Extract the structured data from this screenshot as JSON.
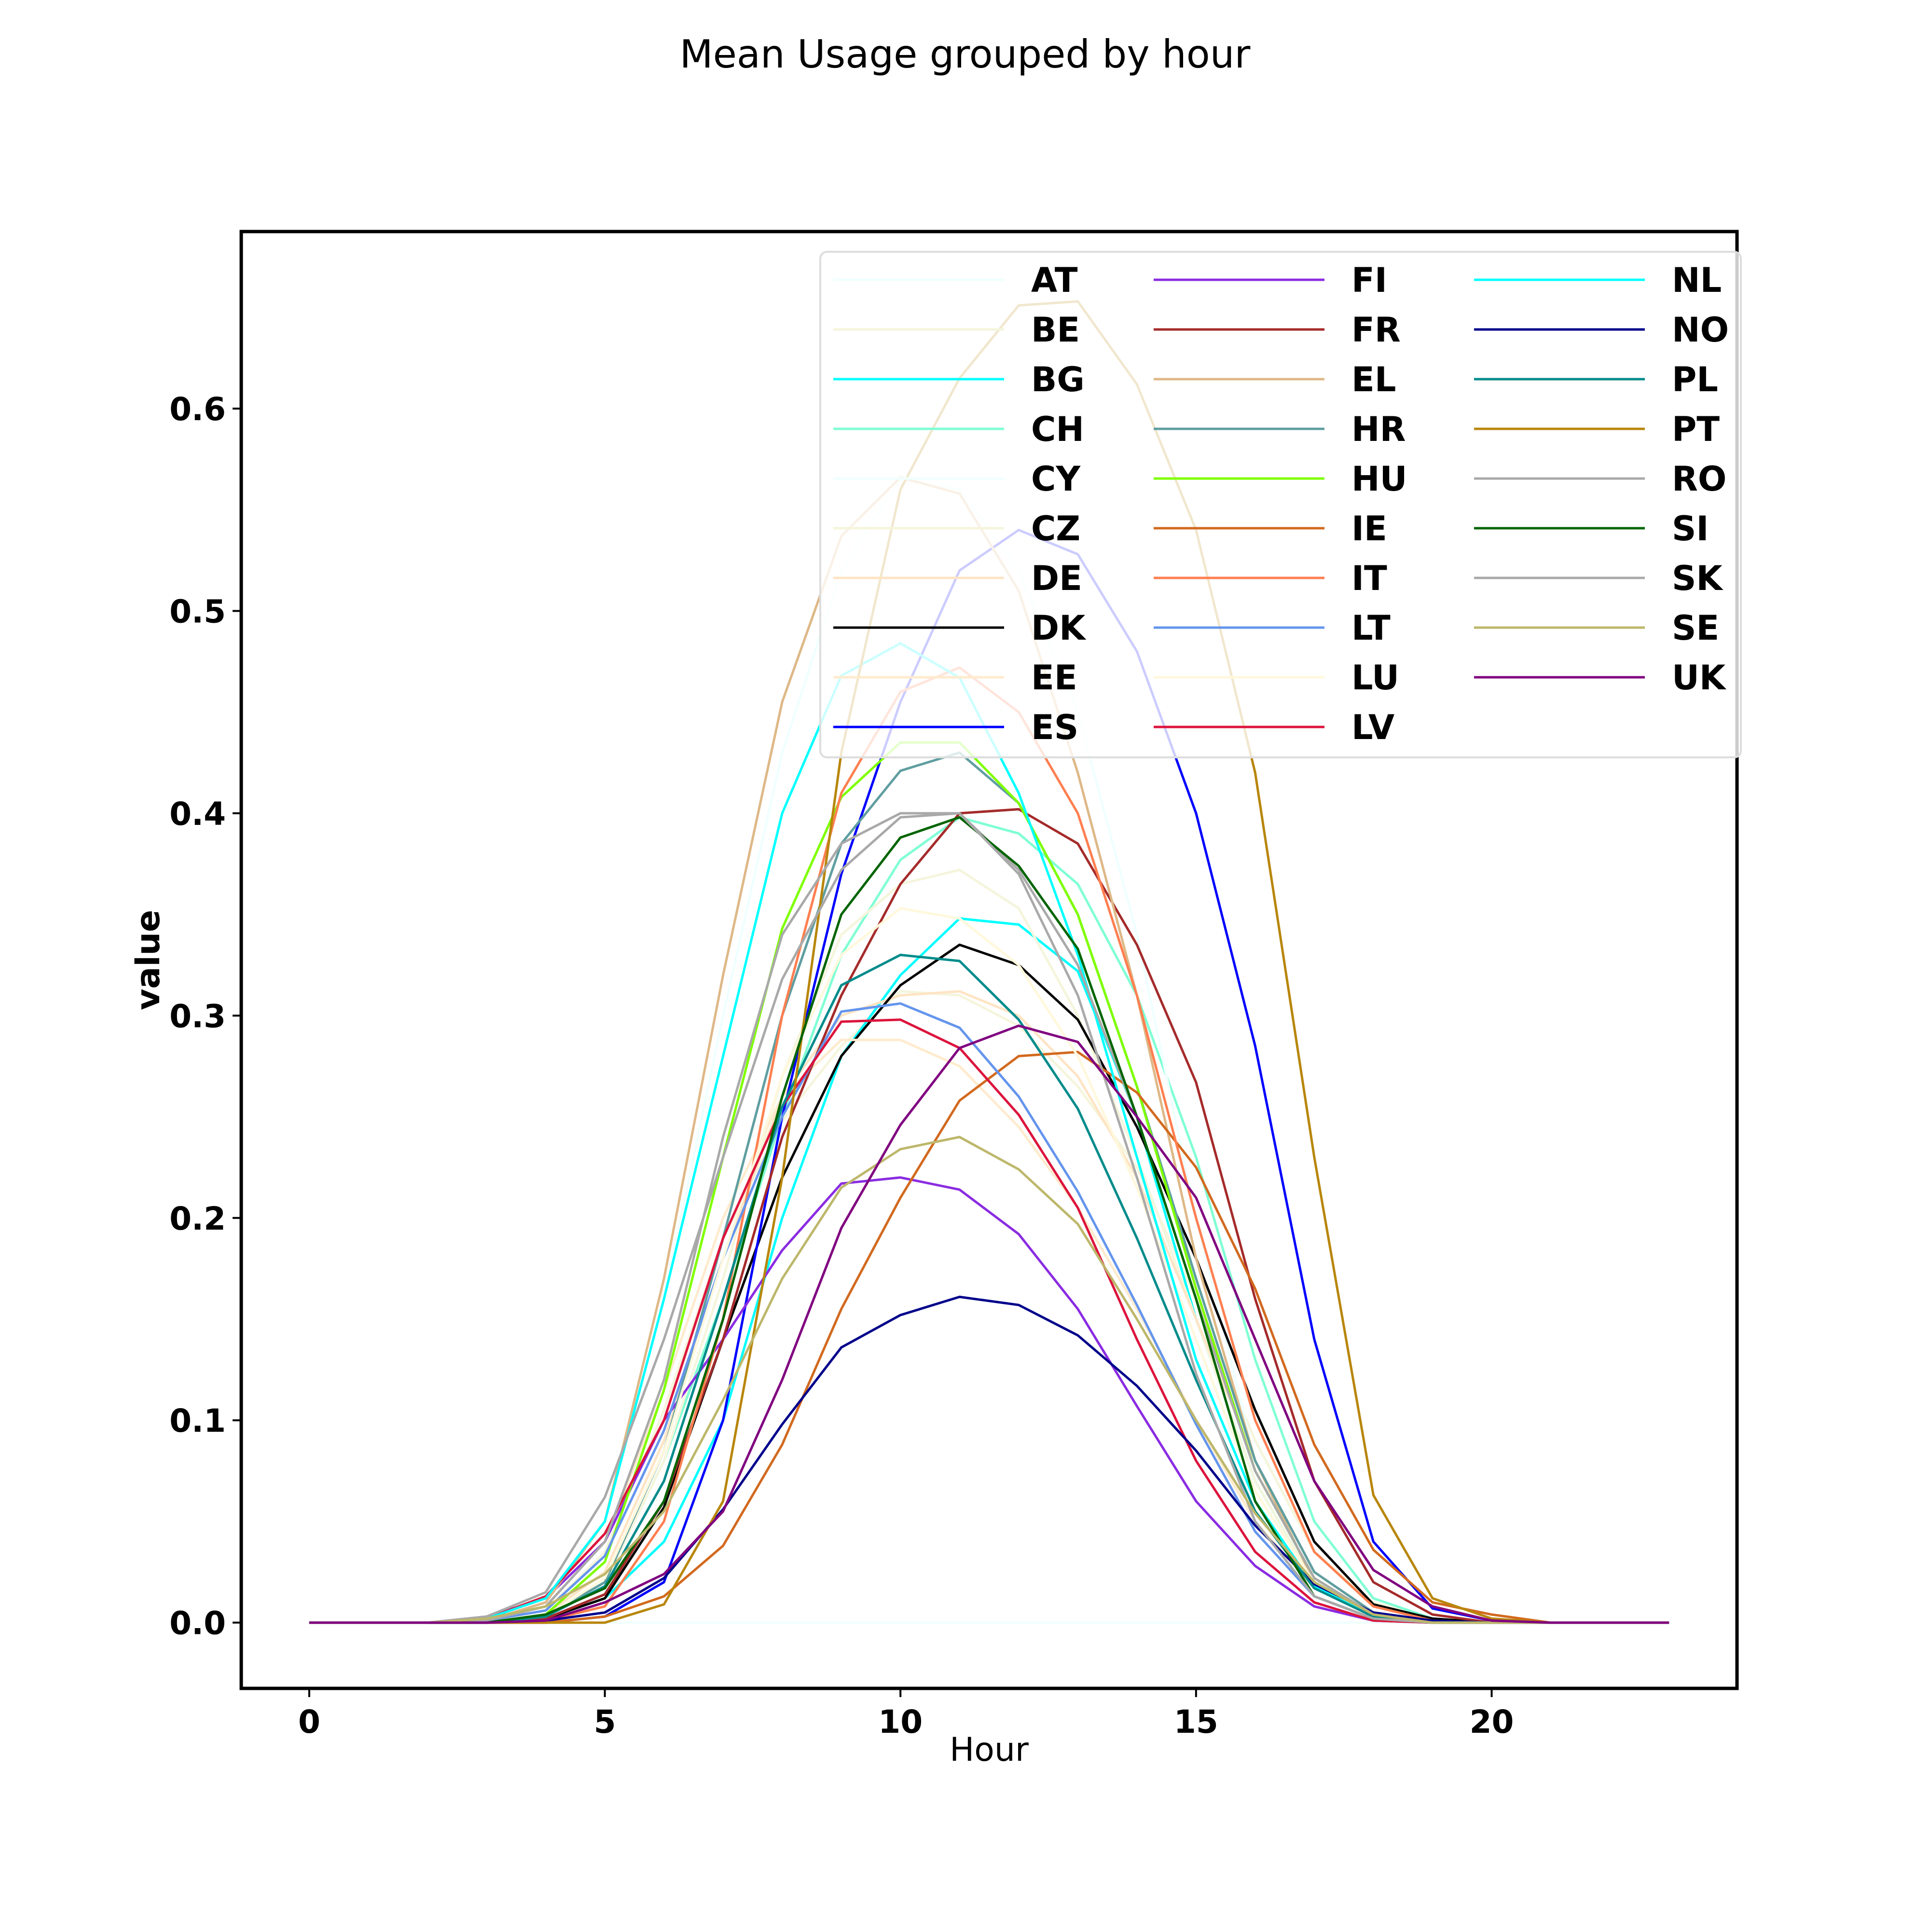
{
  "chart_data": {
    "type": "line",
    "title": "Mean Usage grouped by hour",
    "xlabel": "Hour",
    "ylabel": "value",
    "xlim": [
      -1.15,
      24.15
    ],
    "ylim": [
      -0.0325,
      0.6875
    ],
    "xticks": [
      0,
      5,
      10,
      15,
      20
    ],
    "yticks": [
      0.0,
      0.1,
      0.2,
      0.3,
      0.4,
      0.5,
      0.6
    ],
    "ytick_labels": [
      "0.0",
      "0.1",
      "0.2",
      "0.3",
      "0.4",
      "0.5",
      "0.6"
    ],
    "grid": false,
    "legend": {
      "position": "top-right",
      "columns": 3
    },
    "x": [
      0,
      1,
      2,
      3,
      4,
      5,
      6,
      7,
      8,
      9,
      10,
      11,
      12,
      13,
      14,
      15,
      16,
      17,
      18,
      19,
      20,
      21,
      22,
      23
    ],
    "series": [
      {
        "name": "AT",
        "color": "#F0FFFF",
        "values": [
          0,
          0,
          0,
          0,
          0,
          0,
          0,
          0,
          0,
          0,
          0,
          0,
          0,
          0,
          0,
          0,
          0,
          0,
          0,
          0,
          0,
          0,
          0,
          0
        ]
      },
      {
        "name": "BE",
        "color": "#F5F5DC",
        "values": [
          0,
          0,
          0,
          0.001,
          0.006,
          0.035,
          0.105,
          0.19,
          0.248,
          0.285,
          0.312,
          0.31,
          0.295,
          0.265,
          0.225,
          0.16,
          0.09,
          0.035,
          0.01,
          0.002,
          0,
          0,
          0,
          0
        ]
      },
      {
        "name": "BG",
        "color": "#00FFFF",
        "values": [
          0,
          0,
          0,
          0,
          0.002,
          0.012,
          0.04,
          0.1,
          0.2,
          0.28,
          0.32,
          0.348,
          0.345,
          0.322,
          0.25,
          0.15,
          0.07,
          0.02,
          0.004,
          0,
          0,
          0,
          0,
          0
        ]
      },
      {
        "name": "CH",
        "color": "#7FFFD4",
        "values": [
          0,
          0,
          0,
          0,
          0.003,
          0.02,
          0.08,
          0.16,
          0.25,
          0.33,
          0.377,
          0.398,
          0.39,
          0.365,
          0.31,
          0.23,
          0.13,
          0.05,
          0.012,
          0.002,
          0,
          0,
          0,
          0
        ]
      },
      {
        "name": "CY",
        "color": "#F0FFFF",
        "values": [
          0,
          0,
          0,
          0.001,
          0.01,
          0.05,
          0.16,
          0.3,
          0.43,
          0.52,
          0.565,
          0.56,
          0.52,
          0.45,
          0.34,
          0.2,
          0.08,
          0.02,
          0.003,
          0,
          0,
          0,
          0,
          0
        ]
      },
      {
        "name": "CZ",
        "color": "#F5F5DC",
        "values": [
          0,
          0,
          0,
          0,
          0.003,
          0.02,
          0.08,
          0.17,
          0.27,
          0.34,
          0.365,
          0.372,
          0.353,
          0.3,
          0.23,
          0.15,
          0.07,
          0.02,
          0.004,
          0.001,
          0,
          0,
          0,
          0
        ]
      },
      {
        "name": "DE",
        "color": "#FFE4C4",
        "values": [
          0,
          0,
          0,
          0,
          0.004,
          0.025,
          0.09,
          0.18,
          0.26,
          0.3,
          0.31,
          0.312,
          0.3,
          0.27,
          0.22,
          0.15,
          0.08,
          0.025,
          0.005,
          0.001,
          0,
          0,
          0,
          0
        ]
      },
      {
        "name": "DK",
        "color": "#000000",
        "values": [
          0,
          0,
          0,
          0,
          0.002,
          0.012,
          0.057,
          0.14,
          0.22,
          0.28,
          0.315,
          0.335,
          0.325,
          0.298,
          0.245,
          0.18,
          0.105,
          0.04,
          0.009,
          0.002,
          0,
          0,
          0,
          0
        ]
      },
      {
        "name": "EE",
        "color": "#FFEBCD",
        "values": [
          0,
          0,
          0,
          0.001,
          0.008,
          0.04,
          0.115,
          0.2,
          0.26,
          0.288,
          0.288,
          0.275,
          0.245,
          0.205,
          0.155,
          0.1,
          0.05,
          0.017,
          0.003,
          0,
          0,
          0,
          0,
          0
        ]
      },
      {
        "name": "ES",
        "color": "#0000FF",
        "values": [
          0,
          0,
          0,
          0,
          0,
          0.003,
          0.02,
          0.1,
          0.25,
          0.37,
          0.455,
          0.52,
          0.54,
          0.528,
          0.48,
          0.4,
          0.285,
          0.14,
          0.04,
          0.007,
          0.001,
          0,
          0,
          0
        ]
      },
      {
        "name": "FI",
        "color": "#8A2BE2",
        "values": [
          0,
          0,
          0,
          0.003,
          0.012,
          0.04,
          0.1,
          0.14,
          0.184,
          0.217,
          0.22,
          0.214,
          0.192,
          0.155,
          0.107,
          0.06,
          0.028,
          0.008,
          0.001,
          0,
          0,
          0,
          0,
          0
        ]
      },
      {
        "name": "FR",
        "color": "#A52A2A",
        "values": [
          0,
          0,
          0,
          0,
          0.002,
          0.014,
          0.06,
          0.14,
          0.24,
          0.31,
          0.365,
          0.4,
          0.402,
          0.385,
          0.335,
          0.267,
          0.16,
          0.07,
          0.02,
          0.004,
          0,
          0,
          0,
          0
        ]
      },
      {
        "name": "EL",
        "color": "#DEB887",
        "values": [
          0,
          0,
          0,
          0.001,
          0.01,
          0.05,
          0.17,
          0.32,
          0.455,
          0.537,
          0.566,
          0.558,
          0.51,
          0.42,
          0.31,
          0.18,
          0.08,
          0.02,
          0.003,
          0,
          0,
          0,
          0,
          0
        ]
      },
      {
        "name": "HR",
        "color": "#5F9EA0",
        "values": [
          0,
          0,
          0,
          0,
          0.003,
          0.02,
          0.085,
          0.19,
          0.3,
          0.385,
          0.421,
          0.43,
          0.405,
          0.35,
          0.265,
          0.17,
          0.08,
          0.025,
          0.005,
          0.001,
          0,
          0,
          0,
          0
        ]
      },
      {
        "name": "HU",
        "color": "#7FFF00",
        "values": [
          0,
          0,
          0,
          0,
          0.004,
          0.03,
          0.115,
          0.23,
          0.343,
          0.408,
          0.435,
          0.435,
          0.405,
          0.35,
          0.265,
          0.165,
          0.075,
          0.022,
          0.004,
          0,
          0,
          0,
          0,
          0
        ]
      },
      {
        "name": "IE",
        "color": "#D2691E",
        "values": [
          0,
          0,
          0,
          0,
          0,
          0.003,
          0.013,
          0.038,
          0.088,
          0.155,
          0.21,
          0.258,
          0.28,
          0.282,
          0.262,
          0.225,
          0.165,
          0.088,
          0.036,
          0.01,
          0.004,
          0,
          0,
          0
        ]
      },
      {
        "name": "IT",
        "color": "#FF7F50",
        "values": [
          0,
          0,
          0,
          0,
          0.001,
          0.008,
          0.05,
          0.15,
          0.3,
          0.41,
          0.46,
          0.472,
          0.45,
          0.4,
          0.31,
          0.2,
          0.1,
          0.035,
          0.008,
          0.001,
          0,
          0,
          0,
          0
        ]
      },
      {
        "name": "LT",
        "color": "#6495ED",
        "values": [
          0,
          0,
          0,
          0.001,
          0.006,
          0.033,
          0.095,
          0.18,
          0.25,
          0.302,
          0.306,
          0.294,
          0.26,
          0.213,
          0.157,
          0.098,
          0.045,
          0.013,
          0.002,
          0,
          0,
          0,
          0,
          0
        ]
      },
      {
        "name": "LU",
        "color": "#FFF8DC",
        "values": [
          0,
          0,
          0,
          0,
          0.003,
          0.022,
          0.085,
          0.18,
          0.27,
          0.33,
          0.353,
          0.348,
          0.325,
          0.28,
          0.215,
          0.14,
          0.065,
          0.02,
          0.004,
          0,
          0,
          0,
          0,
          0
        ]
      },
      {
        "name": "LV",
        "color": "#DC143C",
        "values": [
          0,
          0,
          0,
          0.002,
          0.013,
          0.044,
          0.1,
          0.19,
          0.255,
          0.297,
          0.298,
          0.284,
          0.251,
          0.205,
          0.14,
          0.08,
          0.035,
          0.01,
          0.001,
          0,
          0,
          0,
          0,
          0
        ]
      },
      {
        "name": "NL",
        "color": "#00FFFF",
        "values": [
          0,
          0,
          0,
          0.002,
          0.012,
          0.05,
          0.16,
          0.28,
          0.4,
          0.468,
          0.484,
          0.467,
          0.41,
          0.33,
          0.23,
          0.13,
          0.06,
          0.018,
          0.003,
          0,
          0,
          0,
          0,
          0
        ]
      },
      {
        "name": "NO",
        "color": "#00008B",
        "values": [
          0,
          0,
          0,
          0,
          0.001,
          0.005,
          0.022,
          0.056,
          0.098,
          0.136,
          0.152,
          0.161,
          0.157,
          0.142,
          0.117,
          0.085,
          0.048,
          0.019,
          0.005,
          0.001,
          0,
          0,
          0,
          0
        ]
      },
      {
        "name": "PL",
        "color": "#008B8B",
        "values": [
          0,
          0,
          0,
          0,
          0.003,
          0.018,
          0.07,
          0.16,
          0.255,
          0.315,
          0.33,
          0.327,
          0.298,
          0.254,
          0.19,
          0.12,
          0.055,
          0.017,
          0.003,
          0,
          0,
          0,
          0,
          0
        ]
      },
      {
        "name": "PT",
        "color": "#B8860B",
        "values": [
          0,
          0,
          0,
          0,
          0,
          0,
          0.009,
          0.06,
          0.22,
          0.43,
          0.56,
          0.615,
          0.651,
          0.653,
          0.612,
          0.54,
          0.42,
          0.23,
          0.063,
          0.012,
          0.002,
          0,
          0,
          0
        ]
      },
      {
        "name": "RO",
        "color": "#A9A9A9",
        "values": [
          0,
          0,
          0,
          0.001,
          0.008,
          0.04,
          0.12,
          0.24,
          0.34,
          0.385,
          0.4,
          0.4,
          0.372,
          0.325,
          0.25,
          0.16,
          0.075,
          0.022,
          0.004,
          0,
          0,
          0,
          0,
          0
        ]
      },
      {
        "name": "SI",
        "color": "#006400",
        "values": [
          0,
          0,
          0,
          0,
          0.004,
          0.017,
          0.06,
          0.15,
          0.26,
          0.35,
          0.388,
          0.398,
          0.374,
          0.333,
          0.25,
          0.16,
          0.06,
          0.013,
          0.002,
          0,
          0,
          0,
          0,
          0
        ]
      },
      {
        "name": "SK",
        "color": "#A9A9A9",
        "values": [
          0,
          0,
          0,
          0.003,
          0.015,
          0.062,
          0.14,
          0.23,
          0.318,
          0.372,
          0.398,
          0.4,
          0.37,
          0.31,
          0.22,
          0.123,
          0.05,
          0.013,
          0.002,
          0,
          0,
          0,
          0,
          0
        ]
      },
      {
        "name": "SE",
        "color": "#BDB76B",
        "values": [
          0,
          0,
          0,
          0.002,
          0.008,
          0.024,
          0.055,
          0.11,
          0.17,
          0.215,
          0.234,
          0.24,
          0.224,
          0.197,
          0.15,
          0.1,
          0.054,
          0.02,
          0.004,
          0,
          0,
          0,
          0,
          0
        ]
      },
      {
        "name": "UK",
        "color": "#800080",
        "values": [
          0,
          0,
          0,
          0,
          0.001,
          0.01,
          0.024,
          0.055,
          0.12,
          0.195,
          0.246,
          0.284,
          0.295,
          0.287,
          0.25,
          0.21,
          0.14,
          0.07,
          0.026,
          0.008,
          0.001,
          0,
          0,
          0
        ]
      }
    ]
  }
}
